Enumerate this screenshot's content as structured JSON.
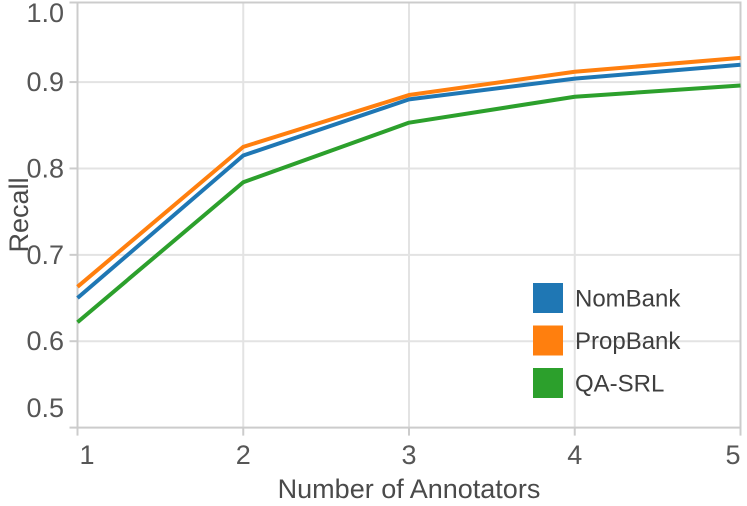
{
  "chart_data": {
    "type": "line",
    "title": "",
    "xlabel": "Number of Annotators",
    "ylabel": "Recall",
    "x": [
      1,
      2,
      3,
      4,
      5
    ],
    "xtick_labels": [
      "1",
      "2",
      "3",
      "4",
      "5"
    ],
    "ytick_values": [
      1.0,
      0.9,
      0.8,
      0.7,
      0.6,
      0.5
    ],
    "ytick_labels": [
      "1.0",
      "0.9",
      "0.8",
      "0.7",
      "0.6",
      "0.5"
    ],
    "xlim": [
      1,
      5
    ],
    "ylim": [
      0.5,
      1.0
    ],
    "grid": true,
    "legend": {
      "position": "lower right",
      "entries": [
        "NomBank",
        "PropBank",
        "QA-SRL"
      ]
    },
    "series": [
      {
        "name": "NomBank",
        "color": "#1f77b4",
        "values": [
          0.65,
          0.815,
          0.88,
          0.904,
          0.92
        ]
      },
      {
        "name": "PropBank",
        "color": "#ff7f0e",
        "values": [
          0.663,
          0.825,
          0.885,
          0.912,
          0.928
        ]
      },
      {
        "name": "QA-SRL",
        "color": "#2ca02c",
        "values": [
          0.622,
          0.784,
          0.853,
          0.883,
          0.896
        ]
      }
    ],
    "colors": {
      "grid": "#e3e3e3",
      "spine": "#cccccc",
      "tick_text": "#565656",
      "label_text": "#4a4a4a",
      "background": "#ffffff"
    }
  }
}
